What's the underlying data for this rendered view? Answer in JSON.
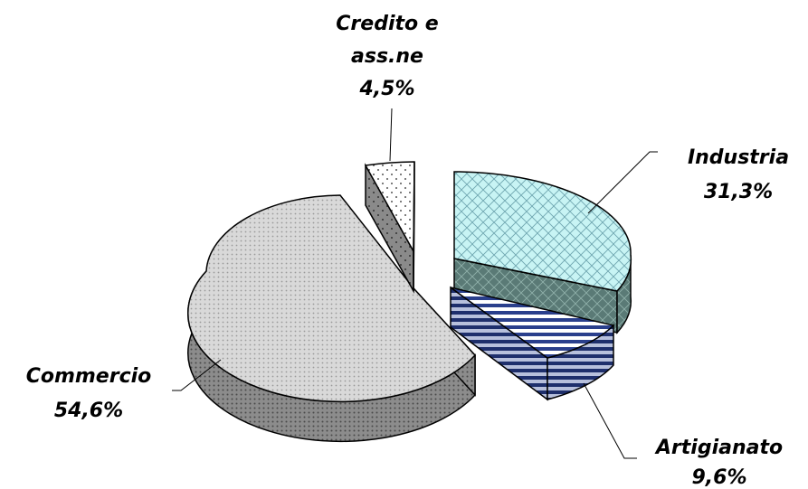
{
  "chart_data": {
    "type": "pie",
    "style": "3d-exploded",
    "slices": [
      {
        "category": "Industria",
        "value": 31.3,
        "label_line1": "Industria",
        "label_line2": "31,3%",
        "color": "#c8f4f4",
        "pattern": "crosshatch"
      },
      {
        "category": "Artigianato",
        "value": 9.6,
        "label_line1": "Artigianato",
        "label_line2": "9,6%",
        "color": "#2a3f8c",
        "pattern": "horizontal-stripes"
      },
      {
        "category": "Commercio",
        "value": 54.6,
        "label_line1": "Commercio",
        "label_line2": "54,6%",
        "color": "#d8d8d8",
        "pattern": "dots"
      },
      {
        "category": "Credito e ass.ne",
        "value": 4.5,
        "label_line1": "Credito e",
        "label_line1b": "ass.ne",
        "label_line2": "4,5%",
        "color": "#ffffff",
        "pattern": "sparse-dots"
      }
    ],
    "legend": "none"
  }
}
